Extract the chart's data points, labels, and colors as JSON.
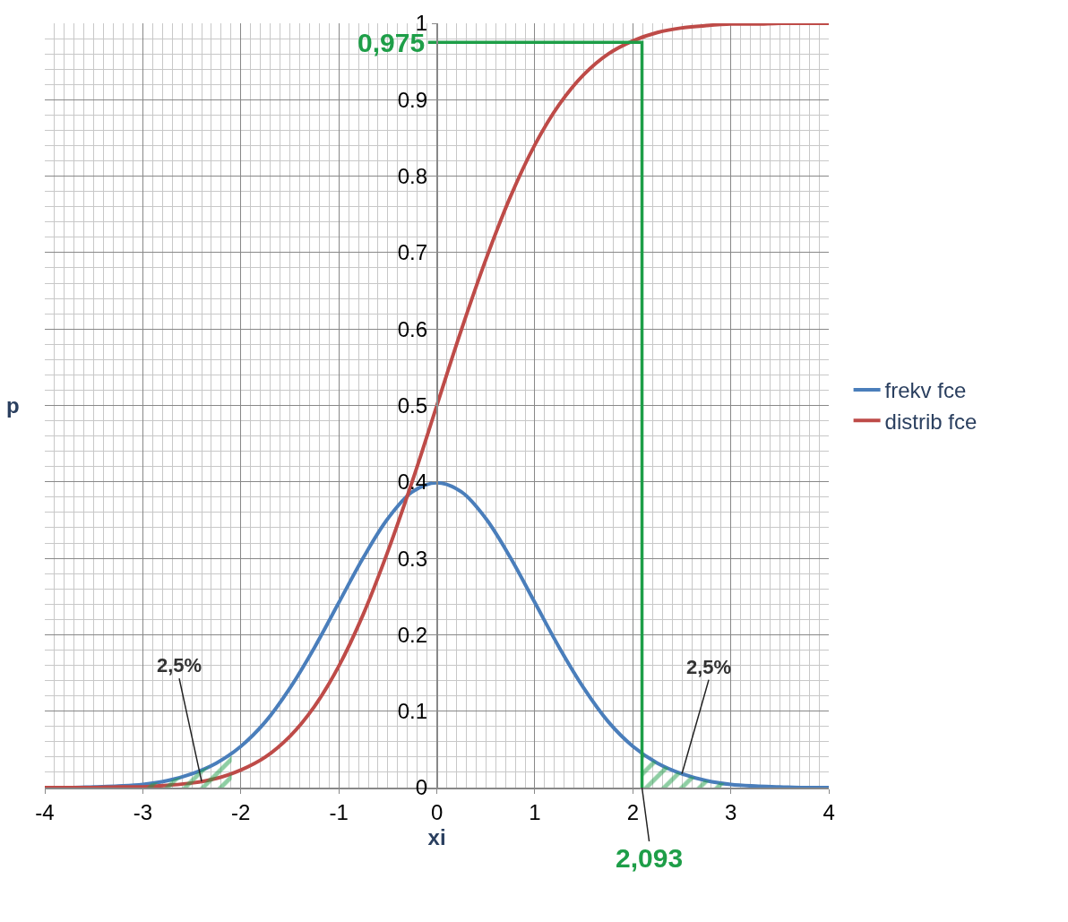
{
  "chart_data": {
    "type": "line",
    "xlabel": "xi",
    "ylabel": "p",
    "x": [
      -4,
      -3.75,
      -3.5,
      -3.25,
      -3,
      -2.75,
      -2.5,
      -2.25,
      -2,
      -1.75,
      -1.5,
      -1.25,
      -1,
      -0.75,
      -0.5,
      -0.25,
      0,
      0.25,
      0.5,
      0.75,
      1,
      1.25,
      1.5,
      1.75,
      2,
      2.25,
      2.5,
      2.75,
      3,
      3.25,
      3.5,
      3.75,
      4
    ],
    "series": [
      {
        "name": "frekv fce",
        "color": "#4a7ebb",
        "values": [
          0.0,
          0.0,
          0.001,
          0.002,
          0.004,
          0.009,
          0.018,
          0.032,
          0.054,
          0.086,
          0.13,
          0.183,
          0.242,
          0.301,
          0.352,
          0.387,
          0.399,
          0.387,
          0.352,
          0.301,
          0.242,
          0.183,
          0.13,
          0.086,
          0.054,
          0.032,
          0.018,
          0.009,
          0.004,
          0.002,
          0.001,
          0.0,
          0.0
        ]
      },
      {
        "name": "distrib fce",
        "color": "#be4b48",
        "values": [
          0.0,
          0.0,
          0.0,
          0.001,
          0.001,
          0.003,
          0.006,
          0.012,
          0.023,
          0.04,
          0.067,
          0.106,
          0.159,
          0.227,
          0.309,
          0.401,
          0.5,
          0.599,
          0.691,
          0.773,
          0.841,
          0.894,
          0.933,
          0.96,
          0.977,
          0.988,
          0.994,
          0.997,
          0.999,
          0.999,
          1.0,
          1.0,
          1.0
        ]
      },
      {
        "type": "area",
        "color": "#1e9e48",
        "x": [
          -3,
          -2.75,
          -2.5,
          -2.25,
          -2.093
        ],
        "values": [
          0.004,
          0.009,
          0.018,
          0.032,
          0.045
        ]
      },
      {
        "type": "area",
        "color": "#1e9e48",
        "x": [
          2.093,
          2.25,
          2.5,
          2.75,
          3
        ],
        "values": [
          0.045,
          0.032,
          0.018,
          0.009,
          0.004
        ]
      },
      {
        "type": "line",
        "color": "#1e9e48",
        "x": [
          2.093,
          2.093,
          -0.09
        ],
        "values": [
          0,
          0.975,
          0.975
        ]
      }
    ],
    "annotations": [
      {
        "text": "0,975",
        "x": -0.09,
        "y": 0.975
      },
      {
        "text": "2,093",
        "x": 2.093,
        "y": 0
      },
      {
        "text": "2,5%",
        "x": -2.4,
        "y": 0.008
      },
      {
        "text": "2,5%",
        "x": 2.5,
        "y": 0.018
      }
    ],
    "xlim": [
      -4,
      4
    ],
    "xticks": [
      -4,
      -3,
      -2,
      -1,
      0,
      1,
      2,
      3,
      4
    ],
    "ylim": [
      0,
      1
    ],
    "yticks": [
      0,
      0.1,
      0.2,
      0.3,
      0.4,
      0.5,
      0.6,
      0.7,
      0.8,
      0.9,
      1
    ],
    "grid": true,
    "legend": "right",
    "marker": "none",
    "line_style": "solid"
  }
}
